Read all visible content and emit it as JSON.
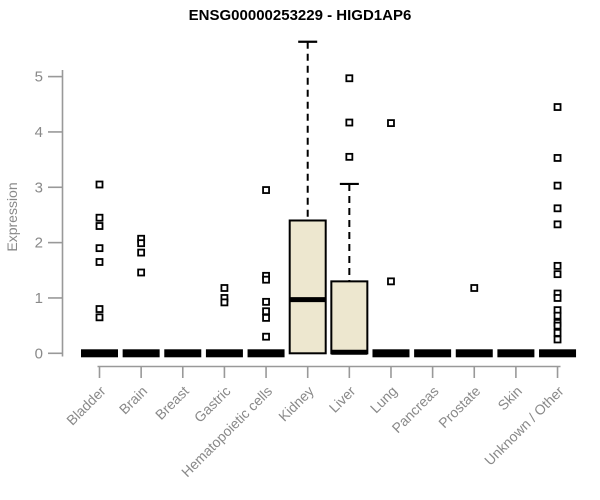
{
  "chart_data": {
    "type": "boxplot",
    "title": "ENSG00000253229 - HIGD1AP6",
    "ylabel": "Expression",
    "xlabel": "",
    "ylim": [
      0,
      5.7
    ],
    "yticks": [
      0,
      1,
      2,
      3,
      4,
      5
    ],
    "grid": false,
    "legend_position": "none",
    "colors": {
      "box_fill": "#EDE7CF",
      "box_border": "#000000",
      "median": "#000000",
      "axis": "#999999",
      "tick_label": "#898989",
      "title": "#000000",
      "outlier_fill": "#ffffff",
      "outlier_border": "#000000"
    },
    "categories": [
      {
        "label": "Bladder",
        "collapsed": true,
        "box": {
          "q1": 0,
          "median": 0,
          "q3": 0,
          "whisker_low": 0,
          "whisker_high": 0
        },
        "outliers": [
          3.05,
          2.45,
          2.3,
          1.9,
          1.65,
          0.8,
          0.65
        ]
      },
      {
        "label": "Brain",
        "collapsed": true,
        "box": {
          "q1": 0,
          "median": 0,
          "q3": 0,
          "whisker_low": 0,
          "whisker_high": 0
        },
        "outliers": [
          2.07,
          1.99,
          1.82,
          1.46
        ]
      },
      {
        "label": "Breast",
        "collapsed": true,
        "box": {
          "q1": 0,
          "median": 0,
          "q3": 0,
          "whisker_low": 0,
          "whisker_high": 0
        },
        "outliers": []
      },
      {
        "label": "Gastric",
        "collapsed": true,
        "box": {
          "q1": 0,
          "median": 0,
          "q3": 0,
          "whisker_low": 0,
          "whisker_high": 0
        },
        "outliers": [
          1.18,
          1.0,
          0.92
        ]
      },
      {
        "label": "Hematopoietic cells",
        "collapsed": true,
        "box": {
          "q1": 0,
          "median": 0,
          "q3": 0,
          "whisker_low": 0,
          "whisker_high": 0
        },
        "outliers": [
          2.95,
          1.4,
          1.33,
          0.93,
          0.76,
          0.64,
          0.3
        ]
      },
      {
        "label": "Kidney",
        "collapsed": false,
        "box": {
          "q1": 0,
          "median": 0.97,
          "q3": 2.4,
          "whisker_low": 0,
          "whisker_high": 5.63
        },
        "outliers": []
      },
      {
        "label": "Liver",
        "collapsed": false,
        "box": {
          "q1": 0,
          "median": 0.02,
          "q3": 1.3,
          "whisker_low": 0,
          "whisker_high": 3.06
        },
        "outliers": [
          4.97,
          4.17,
          3.55
        ]
      },
      {
        "label": "Lung",
        "collapsed": true,
        "box": {
          "q1": 0,
          "median": 0,
          "q3": 0,
          "whisker_low": 0,
          "whisker_high": 0
        },
        "outliers": [
          4.16,
          1.3
        ]
      },
      {
        "label": "Pancreas",
        "collapsed": true,
        "box": {
          "q1": 0,
          "median": 0,
          "q3": 0,
          "whisker_low": 0,
          "whisker_high": 0
        },
        "outliers": []
      },
      {
        "label": "Prostate",
        "collapsed": true,
        "box": {
          "q1": 0,
          "median": 0,
          "q3": 0,
          "whisker_low": 0,
          "whisker_high": 0
        },
        "outliers": [
          1.18
        ]
      },
      {
        "label": "Skin",
        "collapsed": true,
        "box": {
          "q1": 0,
          "median": 0,
          "q3": 0,
          "whisker_low": 0,
          "whisker_high": 0
        },
        "outliers": []
      },
      {
        "label": "Unknown / Other",
        "collapsed": true,
        "box": {
          "q1": 0,
          "median": 0,
          "q3": 0,
          "whisker_low": 0,
          "whisker_high": 0
        },
        "outliers": [
          4.45,
          3.53,
          3.03,
          2.62,
          2.33,
          1.58,
          1.43,
          1.08,
          1.0,
          0.78,
          0.68,
          0.55,
          0.5,
          0.37,
          0.25
        ]
      }
    ]
  }
}
